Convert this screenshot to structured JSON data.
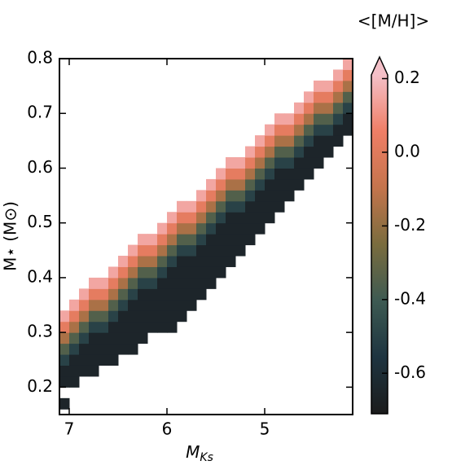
{
  "chart_data": {
    "type": "heatmap",
    "xlabel": "M",
    "xlabel_sub": "Ks",
    "ylabel": "M⋆ (M⊙)",
    "colorbar_label": "<[M/H]>",
    "xlim": [
      7.1,
      4.1
    ],
    "ylim": [
      0.15,
      0.8
    ],
    "xticks": [
      7,
      6,
      5
    ],
    "yticks": [
      0.2,
      0.3,
      0.4,
      0.5,
      0.6,
      0.7,
      0.8
    ],
    "clim": [
      -0.71,
      0.21
    ],
    "cticks": [
      0.2,
      {
        "value": 0,
        "label": "0.0"
      },
      -0.2,
      -0.4,
      -0.6
    ],
    "colorbar_extend": "max",
    "cmap": [
      "#1c1c1c",
      "#1e3440",
      "#3d5a52",
      "#7a6c3e",
      "#c4744c",
      "#ef7e66",
      "#f4c0c8"
    ],
    "xbins": [
      7.1,
      7.0,
      6.9,
      6.8,
      6.7,
      6.6,
      6.5,
      6.4,
      6.3,
      6.2,
      6.1,
      6.0,
      5.9,
      5.8,
      5.7,
      5.6,
      5.5,
      5.4,
      5.3,
      5.2,
      5.1,
      5.0,
      4.9,
      4.8,
      4.7,
      4.6,
      4.5,
      4.4,
      4.3,
      4.2,
      4.1
    ],
    "ybins": [
      0.16,
      0.18,
      0.2,
      0.22,
      0.24,
      0.26,
      0.28,
      0.3,
      0.32,
      0.34,
      0.36,
      0.38,
      0.4,
      0.42,
      0.44,
      0.46,
      0.48,
      0.5,
      0.52,
      0.54,
      0.56,
      0.58,
      0.6,
      0.62,
      0.64,
      0.66,
      0.68,
      0.7,
      0.72,
      0.74,
      0.76,
      0.78,
      0.8
    ],
    "z": [
      [
        -0.65,
        null,
        -0.65,
        -0.65,
        -0.5,
        -0.35,
        -0.15,
        0.02,
        0.15,
        null,
        null,
        null,
        null,
        null,
        null,
        null,
        null,
        null,
        null,
        null,
        null,
        null,
        null,
        null,
        null,
        null,
        null,
        null,
        null,
        null,
        null,
        null
      ],
      [
        null,
        null,
        -0.65,
        -0.65,
        -0.65,
        -0.5,
        -0.35,
        -0.15,
        0.02,
        0.15,
        null,
        null,
        null,
        null,
        null,
        null,
        null,
        null,
        null,
        null,
        null,
        null,
        null,
        null,
        null,
        null,
        null,
        null,
        null,
        null,
        null,
        null
      ],
      [
        null,
        null,
        null,
        -0.65,
        -0.65,
        -0.65,
        -0.5,
        -0.35,
        -0.15,
        0.02,
        0.15,
        null,
        null,
        null,
        null,
        null,
        null,
        null,
        null,
        null,
        null,
        null,
        null,
        null,
        null,
        null,
        null,
        null,
        null,
        null,
        null,
        null
      ],
      [
        null,
        null,
        null,
        -0.65,
        -0.65,
        -0.65,
        -0.65,
        -0.5,
        -0.35,
        -0.15,
        0.02,
        0.15,
        null,
        null,
        null,
        null,
        null,
        null,
        null,
        null,
        null,
        null,
        null,
        null,
        null,
        null,
        null,
        null,
        null,
        null,
        null,
        null
      ],
      [
        null,
        null,
        null,
        null,
        -0.65,
        -0.65,
        -0.65,
        -0.5,
        -0.35,
        -0.15,
        0.02,
        0.15,
        null,
        null,
        null,
        null,
        null,
        null,
        null,
        null,
        null,
        null,
        null,
        null,
        null,
        null,
        null,
        null,
        null,
        null,
        null,
        null
      ],
      [
        null,
        null,
        null,
        null,
        -0.65,
        -0.65,
        -0.65,
        -0.65,
        -0.5,
        -0.35,
        -0.15,
        0.02,
        0.15,
        null,
        null,
        null,
        null,
        null,
        null,
        null,
        null,
        null,
        null,
        null,
        null,
        null,
        null,
        null,
        null,
        null,
        null,
        null
      ],
      [
        null,
        null,
        null,
        null,
        null,
        -0.65,
        -0.65,
        -0.65,
        -0.65,
        -0.5,
        -0.35,
        -0.15,
        0.02,
        0.15,
        null,
        null,
        null,
        null,
        null,
        null,
        null,
        null,
        null,
        null,
        null,
        null,
        null,
        null,
        null,
        null,
        null,
        null
      ],
      [
        null,
        null,
        null,
        null,
        null,
        -0.65,
        -0.65,
        -0.65,
        -0.65,
        -0.65,
        -0.5,
        -0.35,
        -0.15,
        0.02,
        0.15,
        null,
        null,
        null,
        null,
        null,
        null,
        null,
        null,
        null,
        null,
        null,
        null,
        null,
        null,
        null,
        null,
        null
      ],
      [
        null,
        null,
        null,
        null,
        null,
        null,
        -0.65,
        -0.65,
        -0.65,
        -0.65,
        -0.65,
        -0.5,
        -0.35,
        -0.15,
        0.02,
        0.15,
        null,
        null,
        null,
        null,
        null,
        null,
        null,
        null,
        null,
        null,
        null,
        null,
        null,
        null,
        null,
        null
      ],
      [
        null,
        null,
        null,
        null,
        null,
        null,
        null,
        -0.65,
        -0.65,
        -0.65,
        -0.65,
        -0.5,
        -0.35,
        -0.15,
        0.02,
        0.15,
        null,
        null,
        null,
        null,
        null,
        null,
        null,
        null,
        null,
        null,
        null,
        null,
        null,
        null,
        null,
        null
      ],
      [
        null,
        null,
        null,
        null,
        null,
        null,
        null,
        -0.65,
        -0.65,
        -0.65,
        -0.65,
        -0.65,
        -0.5,
        -0.35,
        -0.15,
        0.02,
        0.15,
        null,
        null,
        null,
        null,
        null,
        null,
        null,
        null,
        null,
        null,
        null,
        null,
        null,
        null,
        null
      ],
      [
        null,
        null,
        null,
        null,
        null,
        null,
        null,
        -0.65,
        -0.65,
        -0.65,
        -0.65,
        -0.65,
        -0.65,
        -0.5,
        -0.35,
        -0.15,
        0.02,
        0.15,
        null,
        null,
        null,
        null,
        null,
        null,
        null,
        null,
        null,
        null,
        null,
        null,
        null,
        null
      ],
      [
        null,
        null,
        null,
        null,
        null,
        null,
        null,
        null,
        -0.65,
        -0.65,
        -0.65,
        -0.65,
        -0.65,
        -0.65,
        -0.5,
        -0.35,
        -0.15,
        0.02,
        0.15,
        null,
        null,
        null,
        null,
        null,
        null,
        null,
        null,
        null,
        null,
        null,
        null,
        null
      ],
      [
        null,
        null,
        null,
        null,
        null,
        null,
        null,
        null,
        null,
        -0.65,
        -0.65,
        -0.65,
        -0.65,
        -0.65,
        -0.5,
        -0.35,
        -0.15,
        0.02,
        0.15,
        null,
        null,
        null,
        null,
        null,
        null,
        null,
        null,
        null,
        null,
        null,
        null,
        null
      ],
      [
        null,
        null,
        null,
        null,
        null,
        null,
        null,
        null,
        null,
        null,
        -0.65,
        -0.65,
        -0.65,
        -0.65,
        -0.65,
        -0.5,
        -0.35,
        -0.15,
        0.02,
        0.15,
        null,
        null,
        null,
        null,
        null,
        null,
        null,
        null,
        null,
        null,
        null,
        null
      ],
      [
        null,
        null,
        null,
        null,
        null,
        null,
        null,
        null,
        null,
        null,
        null,
        -0.65,
        -0.65,
        -0.65,
        -0.65,
        -0.65,
        -0.5,
        -0.35,
        -0.15,
        0.02,
        0.15,
        null,
        null,
        null,
        null,
        null,
        null,
        null,
        null,
        null,
        null,
        null
      ],
      [
        null,
        null,
        null,
        null,
        null,
        null,
        null,
        null,
        null,
        null,
        null,
        null,
        -0.65,
        -0.65,
        -0.65,
        -0.65,
        -0.65,
        -0.5,
        -0.35,
        -0.15,
        0.02,
        0.15,
        null,
        null,
        null,
        null,
        null,
        null,
        null,
        null,
        null,
        null
      ],
      [
        null,
        null,
        null,
        null,
        null,
        null,
        null,
        null,
        null,
        null,
        null,
        null,
        null,
        -0.65,
        -0.65,
        -0.65,
        -0.65,
        -0.65,
        -0.5,
        -0.35,
        -0.15,
        0.02,
        0.15,
        null,
        null,
        null,
        null,
        null,
        null,
        null,
        null,
        null
      ],
      [
        null,
        null,
        null,
        null,
        null,
        null,
        null,
        null,
        null,
        null,
        null,
        null,
        null,
        null,
        -0.65,
        -0.65,
        -0.65,
        -0.65,
        -0.5,
        -0.35,
        -0.15,
        0.02,
        0.15,
        null,
        null,
        null,
        null,
        null,
        null,
        null,
        null,
        null
      ],
      [
        null,
        null,
        null,
        null,
        null,
        null,
        null,
        null,
        null,
        null,
        null,
        null,
        null,
        null,
        null,
        -0.65,
        -0.65,
        -0.65,
        -0.65,
        -0.5,
        -0.35,
        -0.15,
        0.02,
        0.15,
        null,
        null,
        null,
        null,
        null,
        null,
        null,
        null
      ],
      [
        null,
        null,
        null,
        null,
        null,
        null,
        null,
        null,
        null,
        null,
        null,
        null,
        null,
        null,
        null,
        null,
        -0.65,
        -0.65,
        -0.65,
        -0.65,
        -0.5,
        -0.35,
        -0.15,
        0.02,
        0.15,
        null,
        null,
        null,
        null,
        null,
        null,
        null
      ],
      [
        null,
        null,
        null,
        null,
        null,
        null,
        null,
        null,
        null,
        null,
        null,
        null,
        null,
        null,
        null,
        null,
        null,
        -0.65,
        -0.65,
        -0.65,
        -0.65,
        -0.5,
        -0.35,
        -0.15,
        0.02,
        0.15,
        null,
        null,
        null,
        null,
        null,
        null
      ],
      [
        null,
        null,
        null,
        null,
        null,
        null,
        null,
        null,
        null,
        null,
        null,
        null,
        null,
        null,
        null,
        null,
        null,
        null,
        -0.65,
        -0.65,
        -0.65,
        -0.65,
        -0.5,
        -0.35,
        -0.15,
        0.02,
        0.15,
        null,
        null,
        null,
        null,
        null
      ],
      [
        null,
        null,
        null,
        null,
        null,
        null,
        null,
        null,
        null,
        null,
        null,
        null,
        null,
        null,
        null,
        null,
        null,
        null,
        null,
        -0.65,
        -0.65,
        -0.65,
        -0.5,
        -0.35,
        -0.15,
        0.02,
        0.15,
        null,
        null,
        null,
        null,
        null
      ],
      [
        null,
        null,
        null,
        null,
        null,
        null,
        null,
        null,
        null,
        null,
        null,
        null,
        null,
        null,
        null,
        null,
        null,
        null,
        null,
        null,
        -0.65,
        -0.65,
        -0.65,
        -0.5,
        -0.35,
        -0.15,
        0.02,
        0.15,
        null,
        null,
        null,
        null
      ],
      [
        null,
        null,
        null,
        null,
        null,
        null,
        null,
        null,
        null,
        null,
        null,
        null,
        null,
        null,
        null,
        null,
        null,
        null,
        null,
        null,
        null,
        -0.65,
        -0.65,
        -0.65,
        -0.5,
        -0.35,
        -0.15,
        0.02,
        0.15,
        null,
        null,
        null
      ],
      [
        null,
        null,
        null,
        null,
        null,
        null,
        null,
        null,
        null,
        null,
        null,
        null,
        null,
        null,
        null,
        null,
        null,
        null,
        null,
        null,
        null,
        null,
        -0.65,
        -0.65,
        -0.65,
        -0.5,
        -0.35,
        -0.15,
        0.02,
        0.15,
        null,
        null
      ],
      [
        null,
        null,
        null,
        null,
        null,
        null,
        null,
        null,
        null,
        null,
        null,
        null,
        null,
        null,
        null,
        null,
        null,
        null,
        null,
        null,
        null,
        null,
        null,
        -0.65,
        -0.65,
        -0.5,
        -0.35,
        -0.15,
        0.02,
        0.15,
        null,
        null
      ],
      [
        null,
        null,
        null,
        null,
        null,
        null,
        null,
        null,
        null,
        null,
        null,
        null,
        null,
        null,
        null,
        null,
        null,
        null,
        null,
        null,
        null,
        null,
        null,
        null,
        -0.65,
        -0.65,
        -0.5,
        -0.35,
        -0.15,
        0.02,
        0.15,
        null
      ],
      [
        null,
        null,
        null,
        null,
        null,
        null,
        null,
        null,
        null,
        null,
        null,
        null,
        null,
        null,
        null,
        null,
        null,
        null,
        null,
        null,
        null,
        null,
        null,
        null,
        null,
        -0.65,
        -0.65,
        -0.5,
        -0.35,
        -0.15,
        0.02,
        0.15
      ]
    ]
  }
}
